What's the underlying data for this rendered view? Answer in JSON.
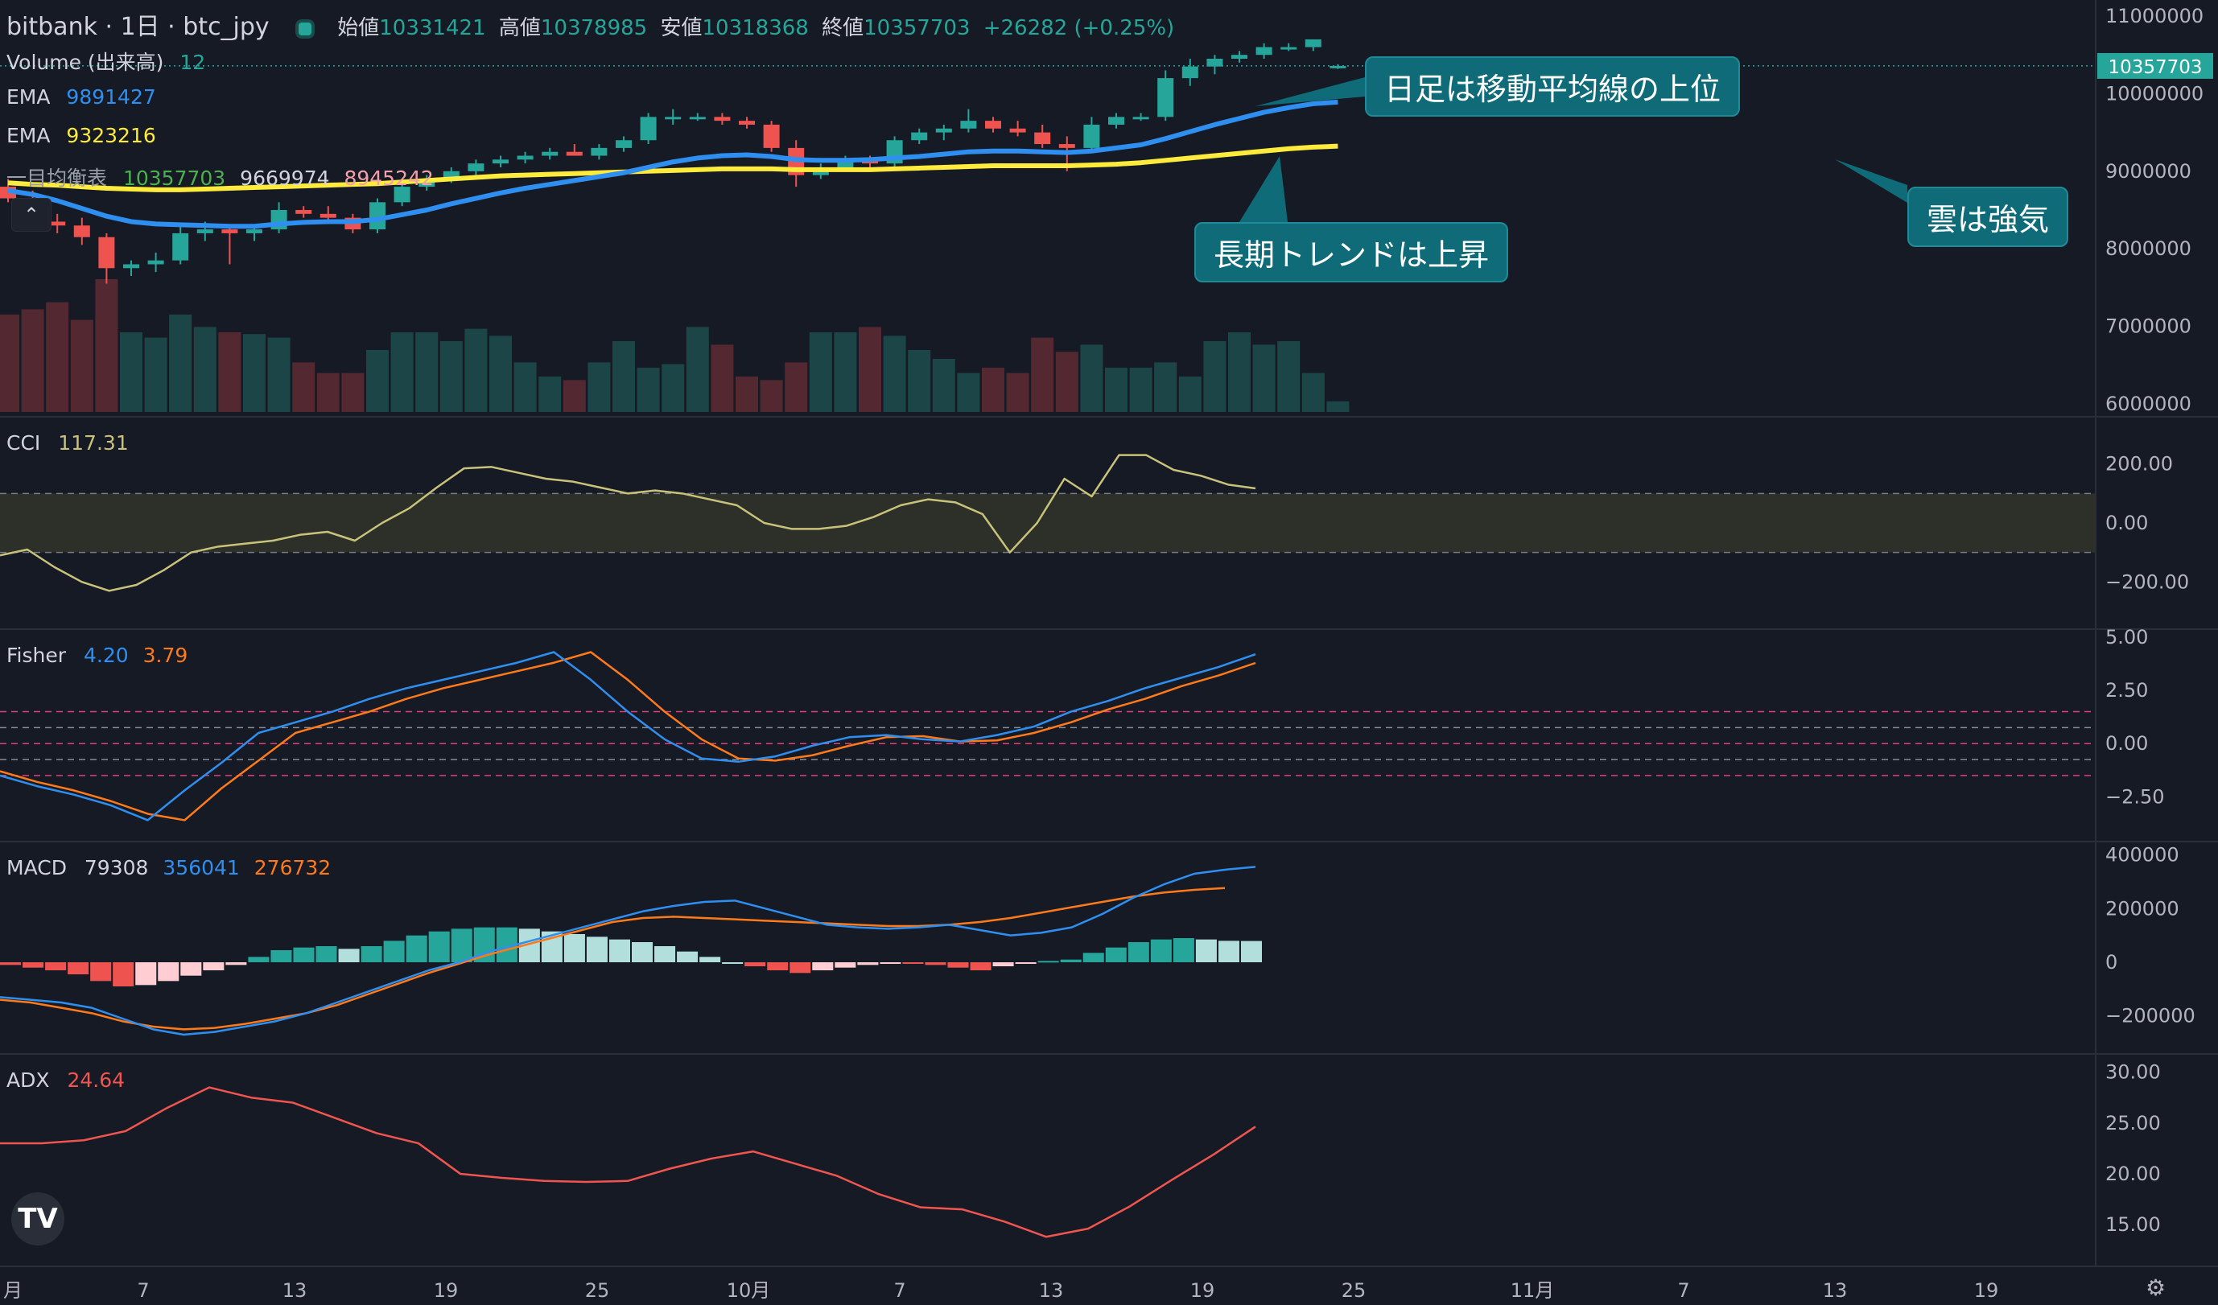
{
  "header": {
    "symbol": "bitbank · 1日 · btc_jpy",
    "open_label": "始値",
    "open": "10331421",
    "high_label": "高値",
    "high": "10378985",
    "low_label": "安値",
    "low": "10318368",
    "close_label": "終値",
    "close": "10357703",
    "change": "+26282 (+0.25%)"
  },
  "legend": {
    "volume": {
      "name": "Volume (出来高)",
      "value": "12"
    },
    "ema1": {
      "name": "EMA",
      "value": "9891427"
    },
    "ema2": {
      "name": "EMA",
      "value": "9323216"
    },
    "ichimoku": {
      "name": "一目均衡表",
      "values": [
        "10357703",
        "9669974",
        "8945242"
      ]
    }
  },
  "annotations": [
    {
      "text": "日足は移動平均線の上位"
    },
    {
      "text": "長期トレンドは上昇"
    },
    {
      "text": "雲は強気"
    }
  ],
  "price_tag": "10357703",
  "colors": {
    "background": "#161a25",
    "up": "#26a69a",
    "down": "#ef5350",
    "ema_fast": "#2f8ff0",
    "ema_slow": "#ffeb3b",
    "cci": "#c9c27a",
    "fisher": "#2f8ff0",
    "fisher_trigger": "#ff7a1a",
    "macd": "#2f8ff0",
    "signal": "#ff7a1a",
    "adx": "#f0554f",
    "callout": "#0f6b78",
    "grid": "#2a2e39",
    "text": "#d1d4dc",
    "axis_text": "#b2b5be"
  },
  "chart_data": [
    {
      "type": "candlestick",
      "panel": "price",
      "y_ticks": [
        "11000000",
        "10000000",
        "9000000",
        "8000000",
        "7000000",
        "6000000"
      ],
      "ylim": [
        6000000,
        11000000
      ],
      "x_ticks": [
        "月",
        "7",
        "13",
        "19",
        "25",
        "10月",
        "7",
        "13",
        "19",
        "25",
        "11月",
        "7",
        "13",
        "19"
      ],
      "candles": [
        [
          8800000,
          8900000,
          8600000,
          8650000
        ],
        [
          8650000,
          8750000,
          8300000,
          8350000
        ],
        [
          8350000,
          8450000,
          8200000,
          8300000
        ],
        [
          8300000,
          8400000,
          8050000,
          8150000
        ],
        [
          8150000,
          8200000,
          7550000,
          7750000
        ],
        [
          7750000,
          7850000,
          7650000,
          7800000
        ],
        [
          7800000,
          7950000,
          7700000,
          7850000
        ],
        [
          7850000,
          8300000,
          7800000,
          8200000
        ],
        [
          8200000,
          8350000,
          8100000,
          8250000
        ],
        [
          8250000,
          8300000,
          7800000,
          8200000
        ],
        [
          8200000,
          8300000,
          8100000,
          8250000
        ],
        [
          8250000,
          8600000,
          8200000,
          8500000
        ],
        [
          8500000,
          8550000,
          8400000,
          8450000
        ],
        [
          8450000,
          8550000,
          8350000,
          8400000
        ],
        [
          8400000,
          8450000,
          8200000,
          8250000
        ],
        [
          8250000,
          8650000,
          8200000,
          8600000
        ],
        [
          8600000,
          8850000,
          8550000,
          8800000
        ],
        [
          8800000,
          8950000,
          8750000,
          8900000
        ],
        [
          8900000,
          9050000,
          8850000,
          9000000
        ],
        [
          9000000,
          9150000,
          8950000,
          9100000
        ],
        [
          9100000,
          9200000,
          9050000,
          9150000
        ],
        [
          9150000,
          9250000,
          9100000,
          9200000
        ],
        [
          9200000,
          9300000,
          9150000,
          9250000
        ],
        [
          9250000,
          9350000,
          9200000,
          9200000
        ],
        [
          9200000,
          9350000,
          9150000,
          9300000
        ],
        [
          9300000,
          9450000,
          9250000,
          9400000
        ],
        [
          9400000,
          9750000,
          9350000,
          9700000
        ],
        [
          9700000,
          9800000,
          9600000,
          9700000
        ],
        [
          9700000,
          9750000,
          9650000,
          9700000
        ],
        [
          9700000,
          9750000,
          9600000,
          9650000
        ],
        [
          9650000,
          9700000,
          9550000,
          9600000
        ],
        [
          9600000,
          9650000,
          9250000,
          9300000
        ],
        [
          9300000,
          9400000,
          8800000,
          8950000
        ],
        [
          8950000,
          9100000,
          8900000,
          9050000
        ],
        [
          9050000,
          9200000,
          9000000,
          9150000
        ],
        [
          9150000,
          9200000,
          9050000,
          9100000
        ],
        [
          9100000,
          9450000,
          9050000,
          9400000
        ],
        [
          9400000,
          9550000,
          9350000,
          9500000
        ],
        [
          9500000,
          9600000,
          9400000,
          9550000
        ],
        [
          9550000,
          9800000,
          9500000,
          9650000
        ],
        [
          9650000,
          9700000,
          9500000,
          9550000
        ],
        [
          9550000,
          9650000,
          9450000,
          9500000
        ],
        [
          9500000,
          9600000,
          9300000,
          9350000
        ],
        [
          9350000,
          9450000,
          9000000,
          9300000
        ],
        [
          9300000,
          9700000,
          9250000,
          9600000
        ],
        [
          9600000,
          9750000,
          9550000,
          9700000
        ],
        [
          9700000,
          9750000,
          9650000,
          9700000
        ],
        [
          9700000,
          10300000,
          9650000,
          10200000
        ],
        [
          10200000,
          10450000,
          10100000,
          10350000
        ],
        [
          10350000,
          10500000,
          10250000,
          10450000
        ],
        [
          10450000,
          10550000,
          10400000,
          10500000
        ],
        [
          10500000,
          10650000,
          10450000,
          10600000
        ],
        [
          10600000,
          10650000,
          10550000,
          10600000
        ],
        [
          10600000,
          10700000,
          10550000,
          10700000
        ],
        [
          10331421,
          10378985,
          10318368,
          10357703
        ]
      ],
      "volume": [
        55,
        58,
        62,
        52,
        75,
        45,
        42,
        55,
        48,
        45,
        44,
        42,
        28,
        22,
        22,
        35,
        45,
        45,
        40,
        47,
        43,
        28,
        20,
        18,
        28,
        40,
        25,
        27,
        48,
        38,
        20,
        18,
        28,
        45,
        45,
        48,
        43,
        35,
        30,
        22,
        25,
        22,
        42,
        34,
        38,
        25,
        25,
        28,
        20,
        40,
        45,
        38,
        40,
        22,
        6
      ],
      "ema_fast": [
        8750000,
        8700000,
        8620000,
        8520000,
        8420000,
        8350000,
        8320000,
        8310000,
        8300000,
        8290000,
        8290000,
        8320000,
        8340000,
        8350000,
        8350000,
        8380000,
        8440000,
        8500000,
        8580000,
        8650000,
        8720000,
        8780000,
        8830000,
        8880000,
        8930000,
        8980000,
        9050000,
        9120000,
        9170000,
        9200000,
        9210000,
        9190000,
        9150000,
        9140000,
        9140000,
        9150000,
        9170000,
        9190000,
        9220000,
        9250000,
        9260000,
        9260000,
        9250000,
        9240000,
        9260000,
        9300000,
        9340000,
        9420000,
        9510000,
        9600000,
        9680000,
        9760000,
        9820000,
        9870000,
        9891427
      ],
      "ema_slow": [
        8850000,
        8830000,
        8820000,
        8800000,
        8780000,
        8770000,
        8760000,
        8760000,
        8770000,
        8780000,
        8790000,
        8800000,
        8810000,
        8820000,
        8830000,
        8840000,
        8860000,
        8880000,
        8900000,
        8920000,
        8940000,
        8950000,
        8960000,
        8970000,
        8980000,
        8990000,
        9000000,
        9010000,
        9020000,
        9030000,
        9030000,
        9030000,
        9020000,
        9020000,
        9020000,
        9020000,
        9030000,
        9040000,
        9050000,
        9060000,
        9070000,
        9070000,
        9070000,
        9070000,
        9080000,
        9090000,
        9110000,
        9140000,
        9170000,
        9200000,
        9230000,
        9260000,
        9290000,
        9310000,
        9323216
      ]
    },
    {
      "type": "line",
      "panel": "cci",
      "title": "CCI",
      "value_label": "117.31",
      "y_ticks": [
        "200.00",
        "0.00",
        "−200.00"
      ],
      "ylim": [
        -300,
        300
      ],
      "band": [
        -100,
        100
      ],
      "values": [
        -110,
        -90,
        -150,
        -200,
        -230,
        -210,
        -160,
        -100,
        -80,
        -70,
        -60,
        -40,
        -30,
        -60,
        0,
        50,
        120,
        185,
        190,
        170,
        150,
        140,
        120,
        100,
        110,
        100,
        80,
        60,
        0,
        -20,
        -20,
        -10,
        20,
        60,
        80,
        70,
        30,
        -100,
        0,
        150,
        90,
        230,
        230,
        180,
        160,
        130,
        117.31
      ]
    },
    {
      "type": "line",
      "panel": "fisher",
      "title": "Fisher",
      "values_label": [
        "4.20",
        "3.79"
      ],
      "y_ticks": [
        "5.00",
        "2.50",
        "0.00",
        "−2.50"
      ],
      "ylim": [
        -4,
        5
      ],
      "reference_lines": [
        1.5,
        0.75,
        0,
        -0.75,
        -1.5
      ],
      "fisher": [
        -1.5,
        -2.0,
        -2.4,
        -2.9,
        -3.6,
        -2.2,
        -0.9,
        0.5,
        1.0,
        1.5,
        2.1,
        2.6,
        3.0,
        3.4,
        3.8,
        4.3,
        3.0,
        1.5,
        0.2,
        -0.7,
        -0.85,
        -0.6,
        -0.1,
        0.3,
        0.4,
        0.2,
        0.1,
        0.4,
        0.8,
        1.5,
        2.0,
        2.6,
        3.1,
        3.6,
        4.2
      ],
      "trigger": [
        -1.3,
        -1.8,
        -2.2,
        -2.7,
        -3.3,
        -3.6,
        -2.1,
        -0.8,
        0.5,
        1.0,
        1.5,
        2.1,
        2.6,
        3.0,
        3.4,
        3.8,
        4.3,
        3.0,
        1.5,
        0.2,
        -0.7,
        -0.8,
        -0.55,
        -0.1,
        0.3,
        0.35,
        0.1,
        0.15,
        0.5,
        1.0,
        1.6,
        2.1,
        2.7,
        3.2,
        3.79
      ]
    },
    {
      "type": "bar",
      "panel": "macd",
      "title": "MACD",
      "values_label": [
        "79308",
        "356041",
        "276732"
      ],
      "y_ticks": [
        "400000",
        "200000",
        "0",
        "−200000"
      ],
      "ylim": [
        -300000,
        420000
      ],
      "histogram": [
        -10000,
        -20000,
        -30000,
        -45000,
        -70000,
        -90000,
        -85000,
        -70000,
        -50000,
        -30000,
        -10000,
        20000,
        45000,
        55000,
        60000,
        50000,
        60000,
        80000,
        100000,
        115000,
        125000,
        130000,
        130000,
        125000,
        115000,
        105000,
        95000,
        85000,
        75000,
        60000,
        40000,
        20000,
        0,
        -15000,
        -30000,
        -40000,
        -30000,
        -20000,
        -10000,
        -5000,
        -5000,
        -10000,
        -20000,
        -30000,
        -15000,
        -5000,
        5000,
        10000,
        35000,
        55000,
        75000,
        85000,
        90000,
        85000,
        80000,
        79308
      ],
      "macd": [
        -130000,
        -140000,
        -150000,
        -170000,
        -210000,
        -250000,
        -270000,
        -260000,
        -240000,
        -220000,
        -190000,
        -150000,
        -110000,
        -70000,
        -30000,
        0,
        40000,
        70000,
        100000,
        130000,
        160000,
        190000,
        210000,
        225000,
        230000,
        200000,
        170000,
        140000,
        130000,
        125000,
        130000,
        140000,
        120000,
        100000,
        110000,
        130000,
        180000,
        240000,
        290000,
        330000,
        345000,
        356041
      ],
      "signal": [
        -140000,
        -150000,
        -170000,
        -190000,
        -220000,
        -240000,
        -250000,
        -245000,
        -230000,
        -210000,
        -190000,
        -160000,
        -120000,
        -80000,
        -40000,
        -5000,
        30000,
        60000,
        90000,
        120000,
        150000,
        165000,
        170000,
        165000,
        160000,
        155000,
        150000,
        145000,
        140000,
        135000,
        135000,
        140000,
        150000,
        165000,
        185000,
        205000,
        225000,
        245000,
        260000,
        270000,
        276732
      ]
    },
    {
      "type": "line",
      "panel": "adx",
      "title": "ADX",
      "value_label": "24.64",
      "y_ticks": [
        "30.00",
        "25.00",
        "20.00",
        "15.00"
      ],
      "ylim": [
        12,
        31
      ],
      "values": [
        23.0,
        23.0,
        23.3,
        24.2,
        26.5,
        28.5,
        27.5,
        27.0,
        25.5,
        24.0,
        23.0,
        20.0,
        19.6,
        19.3,
        19.2,
        19.3,
        20.5,
        21.5,
        22.2,
        21.0,
        19.8,
        18.0,
        16.7,
        16.5,
        15.3,
        13.8,
        14.6,
        16.8,
        19.4,
        21.9,
        24.64
      ]
    }
  ]
}
